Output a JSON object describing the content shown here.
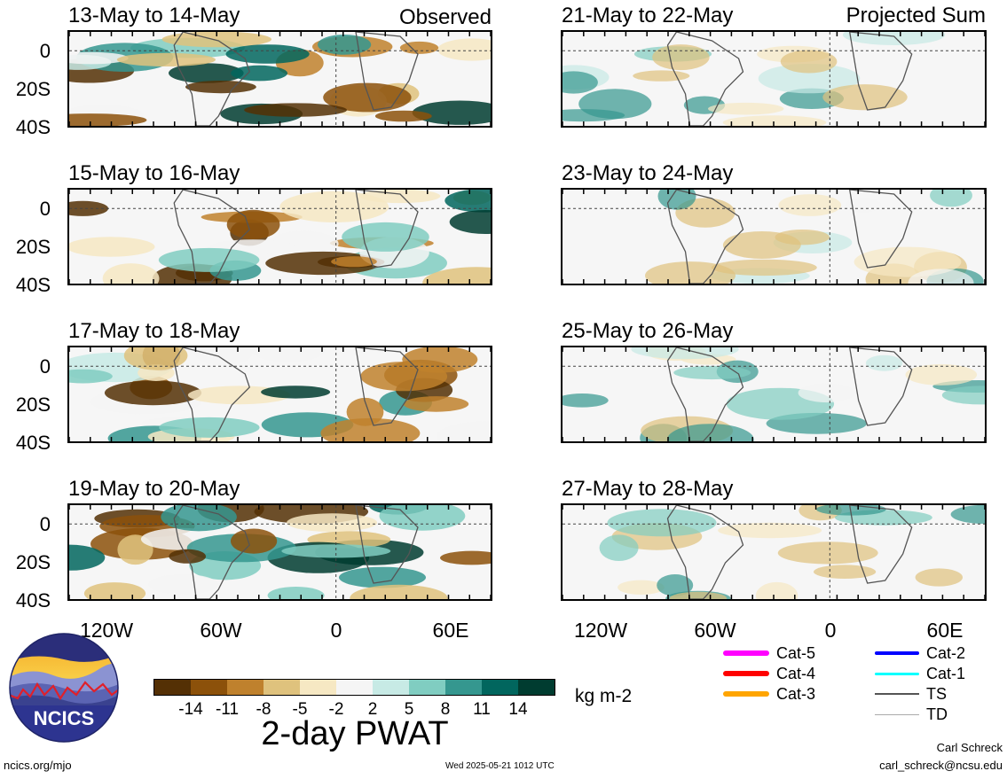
{
  "panels_left": [
    {
      "title": "13-May to 14-May",
      "tag": "Observed"
    },
    {
      "title": "15-May to 16-May",
      "tag": ""
    },
    {
      "title": "17-May to 18-May",
      "tag": ""
    },
    {
      "title": "19-May to 20-May",
      "tag": ""
    }
  ],
  "panels_right": [
    {
      "title": "21-May to 22-May",
      "tag": "Projected Sum"
    },
    {
      "title": "23-May to 24-May",
      "tag": ""
    },
    {
      "title": "25-May to 26-May",
      "tag": ""
    },
    {
      "title": "27-May to 28-May",
      "tag": ""
    }
  ],
  "lat_labels": [
    "0",
    "20S",
    "40S"
  ],
  "lon_labels": [
    "120W",
    "60W",
    "0",
    "60E"
  ],
  "colorbar": {
    "ticks": [
      "-14",
      "-11",
      "-8",
      "-5",
      "-2",
      "2",
      "5",
      "8",
      "11",
      "14"
    ],
    "colors": [
      "#543005",
      "#8c510a",
      "#bf812d",
      "#dfc27d",
      "#f6e8c3",
      "#f5f5f5",
      "#c7eae5",
      "#80cdc1",
      "#35978f",
      "#01665e",
      "#003c30"
    ],
    "units": "kg m-2",
    "title": "2-day PWAT"
  },
  "storm_legend": [
    {
      "label": "Cat-5",
      "color": "#ff00ff"
    },
    {
      "label": "Cat-4",
      "color": "#ff0000"
    },
    {
      "label": "Cat-3",
      "color": "#ffa500"
    },
    {
      "label": "Cat-2",
      "color": "#0000ff"
    },
    {
      "label": "Cat-1",
      "color": "#00ffff"
    },
    {
      "label": "TS",
      "color": "#555555"
    },
    {
      "label": "TD",
      "color": "#aaaaaa"
    }
  ],
  "logo": {
    "text": "NCICS"
  },
  "footer": {
    "url": "ncics.org/mjo",
    "timestamp": "Wed 2025-05-21 1012 UTC",
    "author": "Carl Schreck",
    "email": "carl_schreck@ncsu.edu"
  }
}
